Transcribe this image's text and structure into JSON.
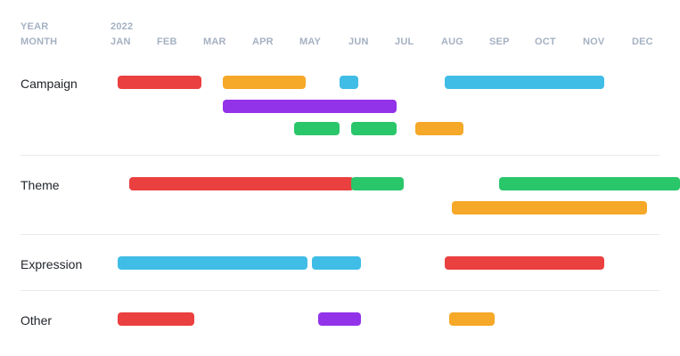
{
  "header": {
    "year_label": "YEAR",
    "month_label": "MONTH",
    "year": "2022",
    "months": [
      "JAN",
      "FEB",
      "MAR",
      "APR",
      "MAY",
      "JUN",
      "JUL",
      "AUG",
      "SEP",
      "OCT",
      "NOV",
      "DEC"
    ]
  },
  "colors": {
    "red": "#ea4040",
    "orange": "#f6a828",
    "blue": "#40bde6",
    "purple": "#9233ea",
    "green": "#2ac66a"
  },
  "categories": [
    {
      "label": "Campaign",
      "bars": [
        {
          "color": "red",
          "start_month": 1.0,
          "end_month": 2.75
        },
        {
          "color": "orange",
          "start_month": 3.2,
          "end_month": 4.95
        },
        {
          "color": "blue",
          "start_month": 5.65,
          "end_month": 6.05
        },
        {
          "color": "blue",
          "start_month": 7.85,
          "end_month": 11.2
        },
        {
          "color": "purple",
          "start_month": 3.2,
          "end_month": 6.85
        },
        {
          "color": "green",
          "start_month": 4.7,
          "end_month": 5.65
        },
        {
          "color": "green",
          "start_month": 5.9,
          "end_month": 6.85
        },
        {
          "color": "orange",
          "start_month": 7.25,
          "end_month": 8.25
        }
      ]
    },
    {
      "label": "Theme",
      "bars": [
        {
          "color": "red",
          "start_month": 1.25,
          "end_month": 5.95
        },
        {
          "color": "green",
          "start_month": 5.9,
          "end_month": 7.0
        },
        {
          "color": "green",
          "start_month": 9.0,
          "end_month": 12.8
        },
        {
          "color": "orange",
          "start_month": 8.0,
          "end_month": 12.1
        }
      ]
    },
    {
      "label": "Expression",
      "bars": [
        {
          "color": "blue",
          "start_month": 1.0,
          "end_month": 4.98
        },
        {
          "color": "blue",
          "start_month": 5.08,
          "end_month": 6.1
        },
        {
          "color": "red",
          "start_month": 7.85,
          "end_month": 11.2
        }
      ]
    },
    {
      "label": "Other",
      "bars": [
        {
          "color": "red",
          "start_month": 1.0,
          "end_month": 2.6
        },
        {
          "color": "purple",
          "start_month": 5.2,
          "end_month": 6.1
        },
        {
          "color": "orange",
          "start_month": 7.95,
          "end_month": 8.9
        }
      ]
    }
  ]
}
